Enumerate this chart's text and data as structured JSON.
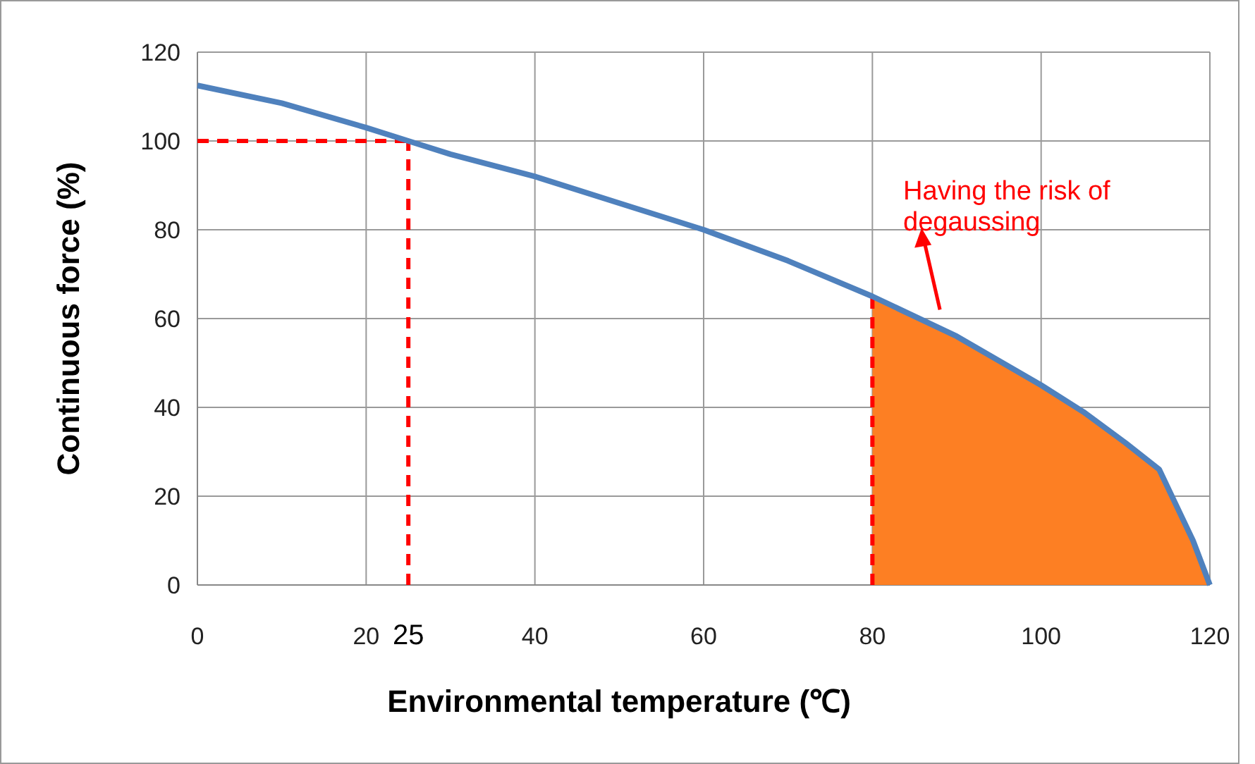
{
  "chart_data": {
    "type": "line",
    "xlabel": "Environmental temperature (℃)",
    "ylabel": "Continuous  force (%)",
    "xlim": [
      0,
      120
    ],
    "xticks": [
      0,
      20,
      40,
      60,
      80,
      100,
      120
    ],
    "ylim": [
      0,
      120
    ],
    "yticks": [
      0,
      20,
      40,
      60,
      80,
      100,
      120
    ],
    "grid": true,
    "series": [
      {
        "type": "area",
        "color": "#fd7f23",
        "x": [
          80,
          90,
          100,
          105,
          110,
          114,
          116,
          118,
          120
        ],
        "values": [
          65,
          56,
          45,
          39,
          32,
          26,
          18,
          10,
          0
        ]
      },
      {
        "color": "#4f81bd",
        "x": [
          0,
          10,
          20,
          25,
          30,
          40,
          50,
          60,
          70,
          80,
          90,
          100,
          105,
          110,
          114,
          116,
          118,
          120
        ],
        "values": [
          112.5,
          108.5,
          103,
          100,
          97,
          92,
          86,
          80,
          73,
          65,
          56,
          45,
          39,
          32,
          26,
          18,
          10,
          0
        ]
      }
    ],
    "ref_lines": [
      {
        "axis": "y",
        "value": 100,
        "color": "#ff0000",
        "line_style": "dashed"
      },
      {
        "axis": "x",
        "value": 25,
        "label": "25",
        "color": "#ff0000",
        "line_style": "dashed"
      },
      {
        "axis": "x",
        "value": 80,
        "color": "#ff0000",
        "line_style": "dashed"
      }
    ],
    "annotations": [
      "Having the risk of degaussing"
    ]
  }
}
